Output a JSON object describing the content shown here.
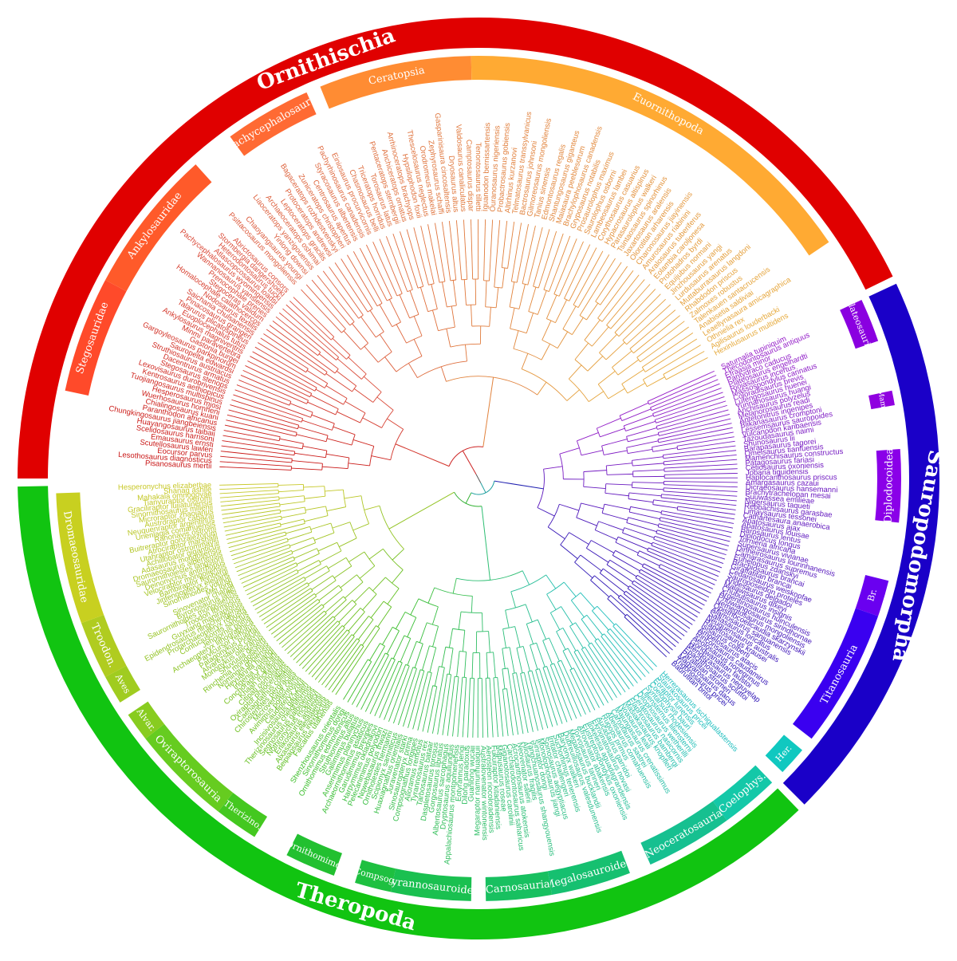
{
  "colors": {
    "ornithischia": "#e00000",
    "saurischia_sauropodo": "#1a00c8",
    "theropoda": "#11c411",
    "stem": "#444444"
  },
  "outer_ring": [
    {
      "id": "ornithischia",
      "label": "Ornithischia",
      "from": -90,
      "to": 64,
      "color": "#e00000"
    },
    {
      "id": "sauropodomorpha",
      "label": "Sauropodomorpha",
      "from": 65,
      "to": 135,
      "color": "#1a00c8"
    },
    {
      "id": "theropoda",
      "label": "Theropoda",
      "from": 136,
      "to": 269,
      "color": "#11c411"
    }
  ],
  "inner_ring": [
    {
      "id": "stegosauridae",
      "label": "Stegosauridae",
      "from": -78,
      "to": -62,
      "color": "#ff4a2a"
    },
    {
      "id": "ankylosauridae",
      "label": "Ankylosauridae",
      "from": -62,
      "to": -42,
      "color": "#ff5a2a"
    },
    {
      "id": "pachycephalosauria",
      "label": "Pachycephalosauria",
      "from": -36,
      "to": -24,
      "color": "#ff6a33"
    },
    {
      "id": "ceratopsia",
      "label": "Ceratopsia",
      "from": -22,
      "to": -1,
      "color": "#ff8c33"
    },
    {
      "id": "euornithopoda",
      "label": "Euornithopoda",
      "from": -1,
      "to": 56,
      "color": "#ffaa33"
    },
    {
      "id": "plateosauria",
      "label": "Plateosauria",
      "from": 65,
      "to": 71,
      "color": "#8a00e0"
    },
    {
      "id": "mam",
      "label": "Mam.",
      "from": 78,
      "to": 80,
      "color": "#9000e0"
    },
    {
      "id": "diplodocoidea",
      "label": "Diplodocoidea",
      "from": 86,
      "to": 96,
      "color": "#8a00e8"
    },
    {
      "id": "br",
      "label": "Br.",
      "from": 104,
      "to": 109,
      "color": "#6a00f0"
    },
    {
      "id": "titanosauria",
      "label": "Titanosauria",
      "from": 109,
      "to": 128,
      "color": "#3a00f0"
    },
    {
      "id": "her",
      "label": "Her.",
      "from": 130,
      "to": 134,
      "color": "#10c8c0"
    },
    {
      "id": "coelophys",
      "label": "Coelophys.",
      "from": 136,
      "to": 144,
      "color": "#14c8a8"
    },
    {
      "id": "neoceratosauria",
      "label": "Neoceratosauria",
      "from": 144,
      "to": 156,
      "color": "#16c090"
    },
    {
      "id": "megalosauroidea",
      "label": "Megalosauroidea",
      "from": 159,
      "to": 170,
      "color": "#16c070"
    },
    {
      "id": "carnosauria",
      "label": "Carnosauria",
      "from": 170,
      "to": 179,
      "color": "#18c060"
    },
    {
      "id": "tyrannosauroidea",
      "label": "Tyrannosauroidea",
      "from": 181,
      "to": 192,
      "color": "#1ac050"
    },
    {
      "id": "compsog",
      "label": "Compsog.",
      "from": 192,
      "to": 197,
      "color": "#1ec040"
    },
    {
      "id": "ornithomimo",
      "label": "Ornithomimo.",
      "from": 200,
      "to": 207,
      "color": "#22c030"
    },
    {
      "id": "therizino",
      "label": "Therizino.",
      "from": 212,
      "to": 218,
      "color": "#44c820"
    },
    {
      "id": "oviraptorosauria",
      "label": "Oviraptorosauria",
      "from": 218,
      "to": 232,
      "color": "#66cc20"
    },
    {
      "id": "alvar",
      "label": "Alvar.",
      "from": 232,
      "to": 236,
      "color": "#88cc20"
    },
    {
      "id": "aves",
      "label": "Aves",
      "from": 238,
      "to": 242,
      "color": "#a0cc20"
    },
    {
      "id": "troodon",
      "label": "Troodon.",
      "from": 242,
      "to": 250,
      "color": "#b0cc20"
    },
    {
      "id": "dromaeosauridae",
      "label": "Dromaeosauridae",
      "from": 250,
      "to": 268,
      "color": "#c8d020"
    }
  ],
  "taxa_labels": {
    "ornithischia_west": [
      "Pisanosaurus mertii",
      "Lesothosaurus diagnosticus",
      "Eocursor parvus",
      "Scutellosaurus lawleri",
      "Emausaurus ernsti",
      "Scelidosaurus harrisoni",
      "Huayangosaurus taibaii",
      "Chungkingosaurus jiangbeiensis",
      "Paranthodon africanus",
      "Chialingosaurus kuani",
      "Wuerhosaurus homheni",
      "Hesperosaurus mjosi",
      "Tuojiangosaurus multispinus",
      "Kentrosaurus aethiopicus",
      "Lexovisaurus durobrivensis",
      "Stegosaurus stenops",
      "Dacentrurus armatus",
      "Struthiosaurus austriacus",
      "Sauropelta edwardsi",
      "Gargoyleosaurus parkpinorum",
      "Gastonia burgei",
      "Minmi paravertebra",
      "Ankylosaurus magniventris",
      "Euoplocephalus tutus",
      "Talarurus plicatospineus",
      "Pinacosaurus grangeri",
      "Saichania chulsanensis",
      "Nodosaurus textilis",
      "Homalocephale calathocercos",
      "Stegoceras validum",
      "Prenocephale prenes",
      "Wannanosaurus yansiensis",
      "Pachycephalosaurus wyomingensis",
      "Atlascopcosaurus loadsi",
      "Heterodontosaurus tucki",
      "Stormbergia dangershoeki",
      "Abrictosaurus consors"
    ],
    "euornithopoda": [
      "Psittacosaurus mongoliensis",
      "Chaoyangsaurus youngi",
      "Yinlong downsi",
      "Liaoceratops yanzigouensis",
      "Archaeoceratops oshimai",
      "Leptoceratops gracilis",
      "Protoceratops andrewsi",
      "Bagaceratops rozhdestvenskyi",
      "Zuniceratops christopheri",
      "Centrosaurus apertus",
      "Styracosaurus albertensis",
      "Pachyrhinosaurus canadensis",
      "Einiosaurus procurvicornis",
      "Chasmosaurus belli",
      "Triceratops horridus",
      "Torosaurus latus",
      "Pentaceratops sternbergii",
      "Anchiceratops ornatus",
      "Arrhinoceratops brachyops",
      "Hypsilophodon foxii",
      "Thescelosaurus neglectus",
      "Orodromeus makelai",
      "Zephyrosaurus schaffi",
      "Gasparinisaura cincosaltensis",
      "Dryosaurus altus",
      "Valdosaurus canaliculatus",
      "Camptosaurus dispar",
      "Tenontosaurus tilletti",
      "Iguanodon bernissartensis",
      "Ouranosaurus nigeriensis",
      "Probactrosaurus gobiensis",
      "Altirhinus kurzanovi",
      "Telmatosaurus transsylvanicus",
      "Bactrosaurus johnsoni",
      "Gilmoreosaurus mongoliensis",
      "Tanius sinensis",
      "Edmontosaurus regalis",
      "Shantungosaurus giganteus",
      "Maiasaura peeblesorum",
      "Brachylophosaurus canadensis",
      "Gryposaurus notabilis",
      "Prosaurolophus maximus",
      "Saurolophus osborni",
      "Lambeosaurus lambei",
      "Corythosaurus casuarius",
      "Hypacrosaurus altispinus",
      "Parasaurolophus walkeri",
      "Tsintaosaurus spinorhinus",
      "Jaxartosaurus aralensis",
      "Olorotitan arharensis",
      "Charonosaurus jiayinensis",
      "Amurosaurus riabinini",
      "Aralosaurus tuberiferus",
      "Eolambia caroljonesa",
      "Protohadros byrdi",
      "Equijubus normani",
      "Jinzhousaurus yangi",
      "Lurdusaurus arenatus",
      "Muttaburrasaurus langdoni",
      "Rhabdodon priscus",
      "Zalmoxes robustus",
      "Talenkauen santacrucensis",
      "Anabisetia saldiviai",
      "Leaellynasaura amicagraphica",
      "Othnielia rex",
      "Agilisaurus louderbacki",
      "Hexinlusaurus multidens"
    ],
    "sauropodomorpha": [
      "Saturnalia tupiniquim",
      "Thecodontosaurus antiquus",
      "Efraasia minor",
      "Pantydraco caducus",
      "Plateosaurus engelhardti",
      "Riojasaurus incertus",
      "Massospondylus carinatus",
      "Coloradisaurus brevis",
      "Lufengosaurus huenei",
      "Yunnanosaurus huangi",
      "Anchisaurus polyzelus",
      "Melanorosaurus readi",
      "Antetonitrus ingenipes",
      "Blikanasaurus cromptoni",
      "Lessemsaurus sauropoides",
      "Vulcanodon karibaensis",
      "Tazoudasaurus naimi",
      "Shunosaurus lii",
      "Barapasaurus tagorei",
      "Omeisaurus tianfuensis",
      "Mamenchisaurus constructus",
      "Patagosaurus fariasi",
      "Cetiosaurus oxoniensis",
      "Jobaria tiguidensis",
      "Haplocanthosaurus priscus",
      "Amargasaurus cazaui",
      "Dicraeosaurus hansemanni",
      "Brachytrachelopan mesai",
      "Suuwassea emilieae",
      "Nigersaurus taqueti",
      "Rebbachisaurus garasbae",
      "Limaysaurus tessonei",
      "Cathartesaura anaerobica",
      "Apatosaurus ajax",
      "Apatosaurus louisae",
      "Barosaurus lentus",
      "Diplodocus longus",
      "Tornieria africana",
      "Supersaurus vivianae",
      "Dinheirosaurus lourinhanensis",
      "Camarasaurus supremus",
      "Euhelopus zdanskyi",
      "Brachiosaurus brancai",
      "Giraffatitan brancai",
      "Cedarosaurus weiskopfae",
      "Sauroposeidon proteles",
      "Andesaurus delgadoi",
      "Malawisaurus dixeyi",
      "Chubutisaurus insignis",
      "Argentinosaurus huinculensis",
      "Phuwiangosaurus sirindhornae",
      "Nemegtosaurus mongoliensis",
      "Opisthocoelicaudia skarzynskii",
      "Alamosaurus sanjuanensis",
      "Saltasaurus loricatus",
      "Neuquensaurus australis",
      "Rapetosaurus krausei",
      "Isisaurus colberti",
      "Ampelosaurus atacis",
      "Rinconsaurus caudamirus",
      "Aeolosaurus rionegrinus",
      "Gondwanatitan faustoi",
      "Mendozasaurus neguyelap",
      "Epachthosaurus sciuttoi",
      "Paralititan stromeri",
      "Magyarosaurus dacus",
      "Trigonosaurus pricei",
      "Baurutitan britoi"
    ],
    "theropoda_south": [
      "Herrerasaurus ischigualastensis",
      "Staurikosaurus pricei",
      "Eoraptor lunensis",
      "Coelophysis bauri",
      "Syntarsus rhodesiensis",
      "Liliensternus liliensterni",
      "Dilophosaurus wetherilli",
      "Ceratosaurus nasicornis",
      "Elaphrosaurus bambergi",
      "Masiakasaurus knopfleri",
      "Noasaurus leali",
      "Majungasaurus crenatissimus",
      "Carnotaurus sastrei",
      "Abelisaurus comahuensis",
      "Rugops primus",
      "Aucasaurus garridoi",
      "Ekrixinatosaurus novasi",
      "Ilokelesia aguadagrandensis",
      "Eustreptospondylus oxoniensis",
      "Afrovenator abakensis",
      "Torvosaurus tanneri",
      "Megalosaurus bucklandii",
      "Dubreuillosaurus valesdunensis",
      "Baryonyx walkeri",
      "Suchomimus tenerensis",
      "Irritator challengeri",
      "Spinosaurus aegyptiacus",
      "Monolophosaurus jiangi",
      "Sinraptor dongi",
      "Yangchuanosaurus shangyouensis",
      "Allosaurus fragilis",
      "Neovenator salerii",
      "Acrocanthosaurus atokensis",
      "Carcharodontosaurus saharicus",
      "Giganotosaurus carolinii",
      "Mapusaurus roseae",
      "Fukuiraptor kitadaniensis",
      "Aerosteon riocoloradensis",
      "Australovenator wintonensis",
      "Megaraptor namunhuaiquii",
      "Guanlong wucaii",
      "Dilong paradoxus",
      "Eotyrannus lengi",
      "Appalachiosaurus montgomeriensis",
      "Dryptosaurus aquilunguis",
      "Albertosaurus sarcophagus",
      "Gorgosaurus libratus",
      "Daspletosaurus torosus",
      "Tarbosaurus bataar",
      "Tyrannosaurus rex",
      "Alioramus remotus",
      "Compsognathus longipes",
      "Sinosauropteryx prima",
      "Juravenator starki",
      "Huaxiagnathus orientalis",
      "Scipionyx samniticus",
      "Ornitholestes hermanni",
      "Nqwebasaurus thwazi",
      "Pelecanimimus polyodon",
      "Harpymimus okladnikovi",
      "Garudimimus brevipes",
      "Archaeornithomimus asiaticus",
      "Anserimimus planinychus",
      "Gallimimus bullatus",
      "Struthiomimus altus",
      "Ornithomimus edmontonicus",
      "Sinornithomimus dongi",
      "Shenzhousaurus orientalis"
    ],
    "theropoda_west": [
      "Falcarius utahensis",
      "Beipiaosaurus inexpectus",
      "Alxasaurus elesitaiensis",
      "Erlikosaurus andrewsi",
      "Nothronychus mckinleyi",
      "Segnosaurus galbinensis",
      "Therizinosaurus cheloniformis",
      "Incisivosaurus gauthieri",
      "Caudipteryx zoui",
      "Avimimus portentosus",
      "Microvenator celer",
      "Chirostenotes pergracilis",
      "Caenagnathus collinsi",
      "Oviraptor philoceratops",
      "Citipati osmolskae",
      "Khaan mckennai",
      "Conchoraptor gracilis",
      "Ingenia yanshini",
      "Heyuannia huangi",
      "Nomingia gobiensis",
      "Rinchenia mongoliensis",
      "Shuvuuia deserti",
      "Mononykus olecranus",
      "Alvarezsaurus calvoi",
      "Patagonykus puertai",
      "Parvicursor remotus",
      "Archaeopteryx lithographica",
      "Jeholornis prima",
      "Confuciusornis sanctus",
      "Protarchaeopteryx robusta",
      "Epidendrosaurus ningchengensis",
      "Guyxiang maniraptorus",
      "Troodon formosus",
      "Saurornithoides mongoliensis",
      "Byronosaurus jaffei",
      "Sinovenator changii",
      "Mei long",
      "Sinornithoides youngi",
      "Jinfengopteryx elegans",
      "Bambiraptor feinbergi",
      "Velociraptor mongoliensis",
      "Deinonychus antirrhopus",
      "Saurornitholestes langstoni",
      "Dromaeosaurus albertensis",
      "Adasaurus mongoliensis",
      "Achillobator giganticus",
      "Utahraptor ostrommaysi",
      "Atrociraptor marshalli",
      "Buitreraptor gonzalezorum",
      "Rahonavis ostromi",
      "Unenlagia comahuensis",
      "Neuquenraptor argentinus",
      "Austroraptor cabazai",
      "Microraptor zhaoianus",
      "Sinornithosaurus millenii",
      "Graciliraptor lujiatunensis",
      "Tianyuraptor ostromi",
      "Mahakala omnogovae",
      "Shanag ashile",
      "Hesperonychus elizabethae"
    ]
  }
}
